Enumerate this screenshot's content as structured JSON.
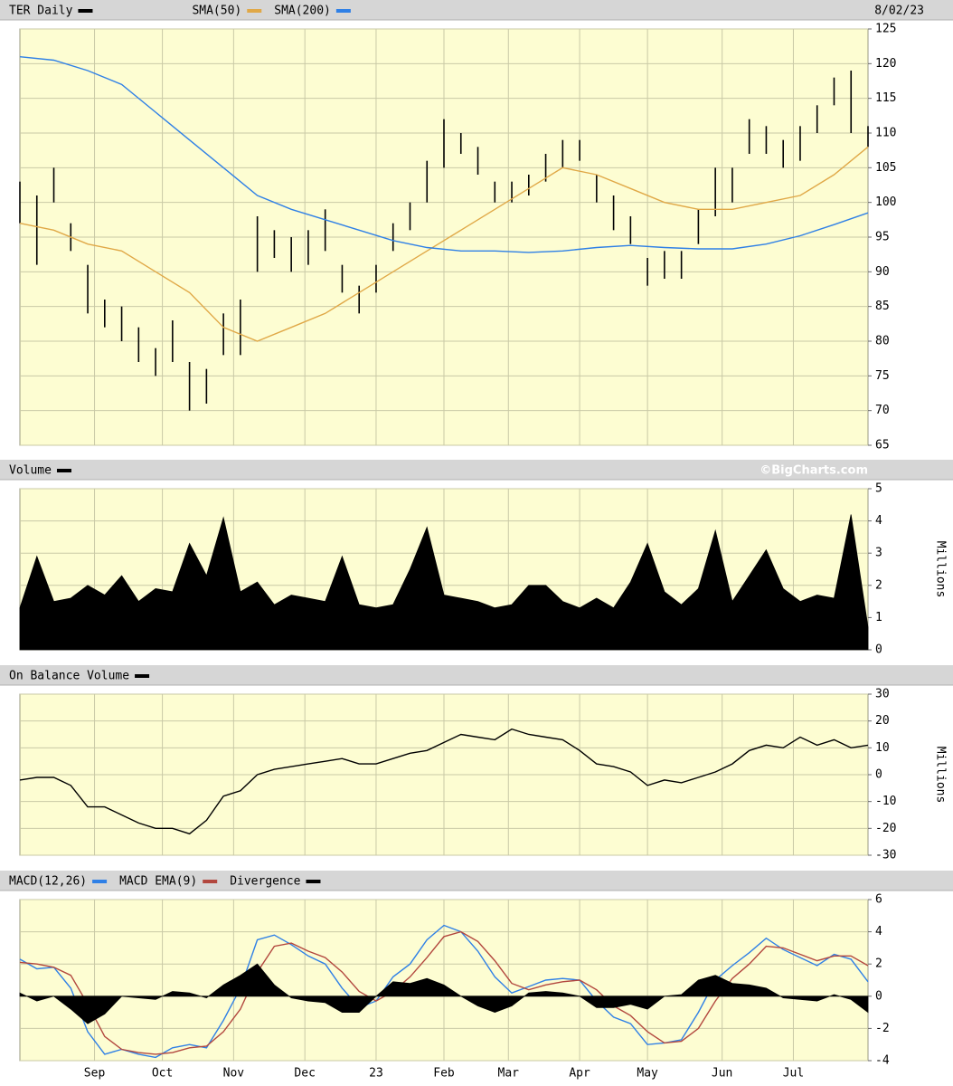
{
  "chart_data": [
    {
      "type": "ohlc",
      "date_label": "8/02/23",
      "ylim": [
        65,
        125
      ],
      "yticks": [
        65,
        70,
        75,
        80,
        85,
        90,
        95,
        100,
        105,
        110,
        115,
        120,
        125
      ],
      "grid": true,
      "series": [
        {
          "name": "TER Daily",
          "color": "#000000",
          "x": [
            0,
            5,
            10,
            15,
            20,
            25,
            30,
            35,
            40,
            45,
            50,
            55,
            60,
            65,
            70,
            75,
            80,
            85,
            90,
            95,
            100,
            105,
            110,
            115,
            120,
            125,
            130,
            135,
            140,
            145,
            150,
            155,
            160,
            165,
            170,
            175,
            180,
            185,
            190,
            195,
            200,
            205,
            210,
            215,
            220,
            225,
            230,
            235,
            240,
            245,
            250
          ],
          "high": [
            103,
            101,
            105,
            97,
            91,
            86,
            85,
            82,
            79,
            83,
            77,
            76,
            84,
            86,
            98,
            96,
            95,
            96,
            99,
            91,
            88,
            91,
            97,
            100,
            106,
            112,
            110,
            108,
            103,
            103,
            104,
            107,
            109,
            109,
            104,
            101,
            98,
            92,
            93,
            93,
            99,
            105,
            105,
            112,
            111,
            109,
            111,
            114,
            118,
            119,
            111
          ],
          "low": [
            97,
            91,
            100,
            93,
            84,
            82,
            80,
            77,
            75,
            77,
            70,
            71,
            78,
            78,
            90,
            92,
            90,
            91,
            93,
            87,
            84,
            87,
            93,
            96,
            100,
            105,
            107,
            104,
            100,
            100,
            101,
            103,
            105,
            106,
            100,
            96,
            94,
            88,
            89,
            89,
            94,
            98,
            100,
            107,
            107,
            105,
            106,
            110,
            114,
            110,
            108
          ]
        },
        {
          "name": "SMA(50)",
          "color": "#e0a847",
          "x": [
            0,
            10,
            20,
            30,
            40,
            50,
            60,
            70,
            80,
            90,
            100,
            110,
            120,
            130,
            140,
            150,
            160,
            170,
            180,
            190,
            200,
            210,
            220,
            230,
            240,
            250
          ],
          "values": [
            97,
            96,
            94,
            93,
            90,
            87,
            82,
            80,
            82,
            84,
            87,
            90,
            93,
            96,
            99,
            102,
            105,
            104,
            102,
            100,
            99,
            99,
            100,
            101,
            104,
            108
          ]
        },
        {
          "name": "SMA(200)",
          "color": "#2f80e6",
          "x": [
            0,
            10,
            20,
            30,
            40,
            50,
            60,
            70,
            80,
            90,
            100,
            110,
            120,
            130,
            140,
            150,
            160,
            170,
            180,
            190,
            200,
            210,
            220,
            230,
            240,
            250
          ],
          "values": [
            121,
            120.5,
            119,
            117,
            113,
            109,
            105,
            101,
            99,
            97.5,
            96,
            94.5,
            93.5,
            93,
            93,
            92.8,
            93,
            93.5,
            93.8,
            93.5,
            93.3,
            93.3,
            94,
            95.2,
            96.8,
            98.5
          ]
        }
      ]
    },
    {
      "type": "area",
      "watermark": "©BigCharts.com",
      "ylabel": "Millions",
      "ylim": [
        0,
        5
      ],
      "yticks": [
        0,
        1,
        2,
        3,
        4,
        5
      ],
      "grid": true,
      "x": [
        0,
        5,
        10,
        15,
        20,
        25,
        30,
        35,
        40,
        45,
        50,
        55,
        60,
        65,
        70,
        75,
        80,
        85,
        90,
        95,
        100,
        105,
        110,
        115,
        120,
        125,
        130,
        135,
        140,
        145,
        150,
        155,
        160,
        165,
        170,
        175,
        180,
        185,
        190,
        195,
        200,
        205,
        210,
        215,
        220,
        225,
        230,
        235,
        240,
        245,
        250
      ],
      "series": [
        {
          "name": "Volume",
          "color": "#000000",
          "values": [
            1.3,
            2.9,
            1.5,
            1.6,
            2.0,
            1.7,
            2.3,
            1.5,
            1.9,
            1.8,
            3.3,
            2.3,
            4.1,
            1.8,
            2.1,
            1.4,
            1.7,
            1.6,
            1.5,
            2.9,
            1.4,
            1.3,
            1.4,
            2.5,
            3.8,
            1.7,
            1.6,
            1.5,
            1.3,
            1.4,
            2.0,
            2.0,
            1.5,
            1.3,
            1.6,
            1.3,
            2.1,
            3.3,
            1.8,
            1.4,
            1.9,
            3.7,
            1.5,
            2.3,
            3.1,
            1.9,
            1.5,
            1.7,
            1.6,
            4.2,
            0.7
          ]
        }
      ]
    },
    {
      "type": "line",
      "ylabel": "Millions",
      "ylim": [
        -30,
        30
      ],
      "yticks": [
        -30,
        -20,
        -10,
        0,
        10,
        20,
        30
      ],
      "grid": true,
      "x": [
        0,
        5,
        10,
        15,
        20,
        25,
        30,
        35,
        40,
        45,
        50,
        55,
        60,
        65,
        70,
        75,
        80,
        85,
        90,
        95,
        100,
        105,
        110,
        115,
        120,
        125,
        130,
        135,
        140,
        145,
        150,
        155,
        160,
        165,
        170,
        175,
        180,
        185,
        190,
        195,
        200,
        205,
        210,
        215,
        220,
        225,
        230,
        235,
        240,
        245,
        250
      ],
      "series": [
        {
          "name": "On Balance Volume",
          "color": "#000000",
          "values": [
            -2,
            -1,
            -1,
            -4,
            -12,
            -12,
            -15,
            -18,
            -20,
            -20,
            -22,
            -17,
            -8,
            -6,
            0,
            2,
            3,
            4,
            5,
            6,
            4,
            4,
            6,
            8,
            9,
            12,
            15,
            14,
            13,
            17,
            15,
            14,
            13,
            9,
            4,
            3,
            1,
            -4,
            -2,
            -3,
            -1,
            1,
            4,
            9,
            11,
            10,
            14,
            11,
            13,
            10,
            11
          ]
        }
      ]
    },
    {
      "type": "line",
      "ylim": [
        -4,
        6
      ],
      "yticks": [
        -4,
        -2,
        0,
        2,
        4,
        6
      ],
      "grid": true,
      "xlim": [
        0,
        250
      ],
      "xticks": [
        {
          "value": 22,
          "label": "Sep"
        },
        {
          "value": 42,
          "label": "Oct"
        },
        {
          "value": 63,
          "label": "Nov"
        },
        {
          "value": 84,
          "label": "Dec"
        },
        {
          "value": 105,
          "label": "23"
        },
        {
          "value": 125,
          "label": "Feb"
        },
        {
          "value": 144,
          "label": "Mar"
        },
        {
          "value": 165,
          "label": "Apr"
        },
        {
          "value": 185,
          "label": "May"
        },
        {
          "value": 207,
          "label": "Jun"
        },
        {
          "value": 228,
          "label": "Jul"
        }
      ],
      "x": [
        0,
        5,
        10,
        15,
        20,
        25,
        30,
        35,
        40,
        45,
        50,
        55,
        60,
        65,
        70,
        75,
        80,
        85,
        90,
        95,
        100,
        105,
        110,
        115,
        120,
        125,
        130,
        135,
        140,
        145,
        150,
        155,
        160,
        165,
        170,
        175,
        180,
        185,
        190,
        195,
        200,
        205,
        210,
        215,
        220,
        225,
        230,
        235,
        240,
        245,
        250
      ],
      "series": [
        {
          "name": "MACD(12,26)",
          "color": "#2f80e6",
          "values": [
            2.3,
            1.7,
            1.8,
            0.5,
            -2.2,
            -3.6,
            -3.3,
            -3.6,
            -3.8,
            -3.2,
            -3.0,
            -3.2,
            -1.5,
            0.5,
            3.5,
            3.8,
            3.2,
            2.5,
            2.0,
            0.5,
            -0.7,
            -0.3,
            1.2,
            2.0,
            3.5,
            4.4,
            4.0,
            2.8,
            1.2,
            0.2,
            0.6,
            1.0,
            1.1,
            1.0,
            -0.3,
            -1.3,
            -1.7,
            -3.0,
            -2.9,
            -2.7,
            -1.0,
            1.0,
            1.9,
            2.7,
            3.6,
            2.9,
            2.4,
            1.9,
            2.6,
            2.3,
            0.9
          ]
        },
        {
          "name": "MACD EMA(9)",
          "color": "#b2473e",
          "values": [
            2.1,
            2.0,
            1.8,
            1.3,
            -0.5,
            -2.5,
            -3.3,
            -3.5,
            -3.6,
            -3.5,
            -3.2,
            -3.1,
            -2.2,
            -0.8,
            1.5,
            3.1,
            3.3,
            2.8,
            2.4,
            1.5,
            0.3,
            -0.3,
            0.3,
            1.2,
            2.4,
            3.7,
            4.0,
            3.4,
            2.2,
            0.8,
            0.4,
            0.7,
            0.9,
            1.0,
            0.4,
            -0.6,
            -1.2,
            -2.2,
            -2.9,
            -2.8,
            -2.0,
            -0.3,
            1.1,
            2.0,
            3.1,
            3.0,
            2.6,
            2.2,
            2.5,
            2.5,
            1.9
          ]
        },
        {
          "name": "Divergence",
          "color": "#000000",
          "style": "area",
          "values": [
            0.2,
            -0.3,
            0,
            -0.8,
            -1.7,
            -1.1,
            0,
            -0.1,
            -0.2,
            0.3,
            0.2,
            -0.1,
            0.7,
            1.3,
            2.0,
            0.7,
            -0.1,
            -0.3,
            -0.4,
            -1.0,
            -1.0,
            0,
            0.9,
            0.8,
            1.1,
            0.7,
            0,
            -0.6,
            -1.0,
            -0.6,
            0.2,
            0.3,
            0.2,
            0,
            -0.7,
            -0.7,
            -0.5,
            -0.8,
            0,
            0.1,
            1.0,
            1.3,
            0.8,
            0.7,
            0.5,
            -0.1,
            -0.2,
            -0.3,
            0.1,
            -0.2,
            -1.0
          ]
        }
      ]
    }
  ]
}
